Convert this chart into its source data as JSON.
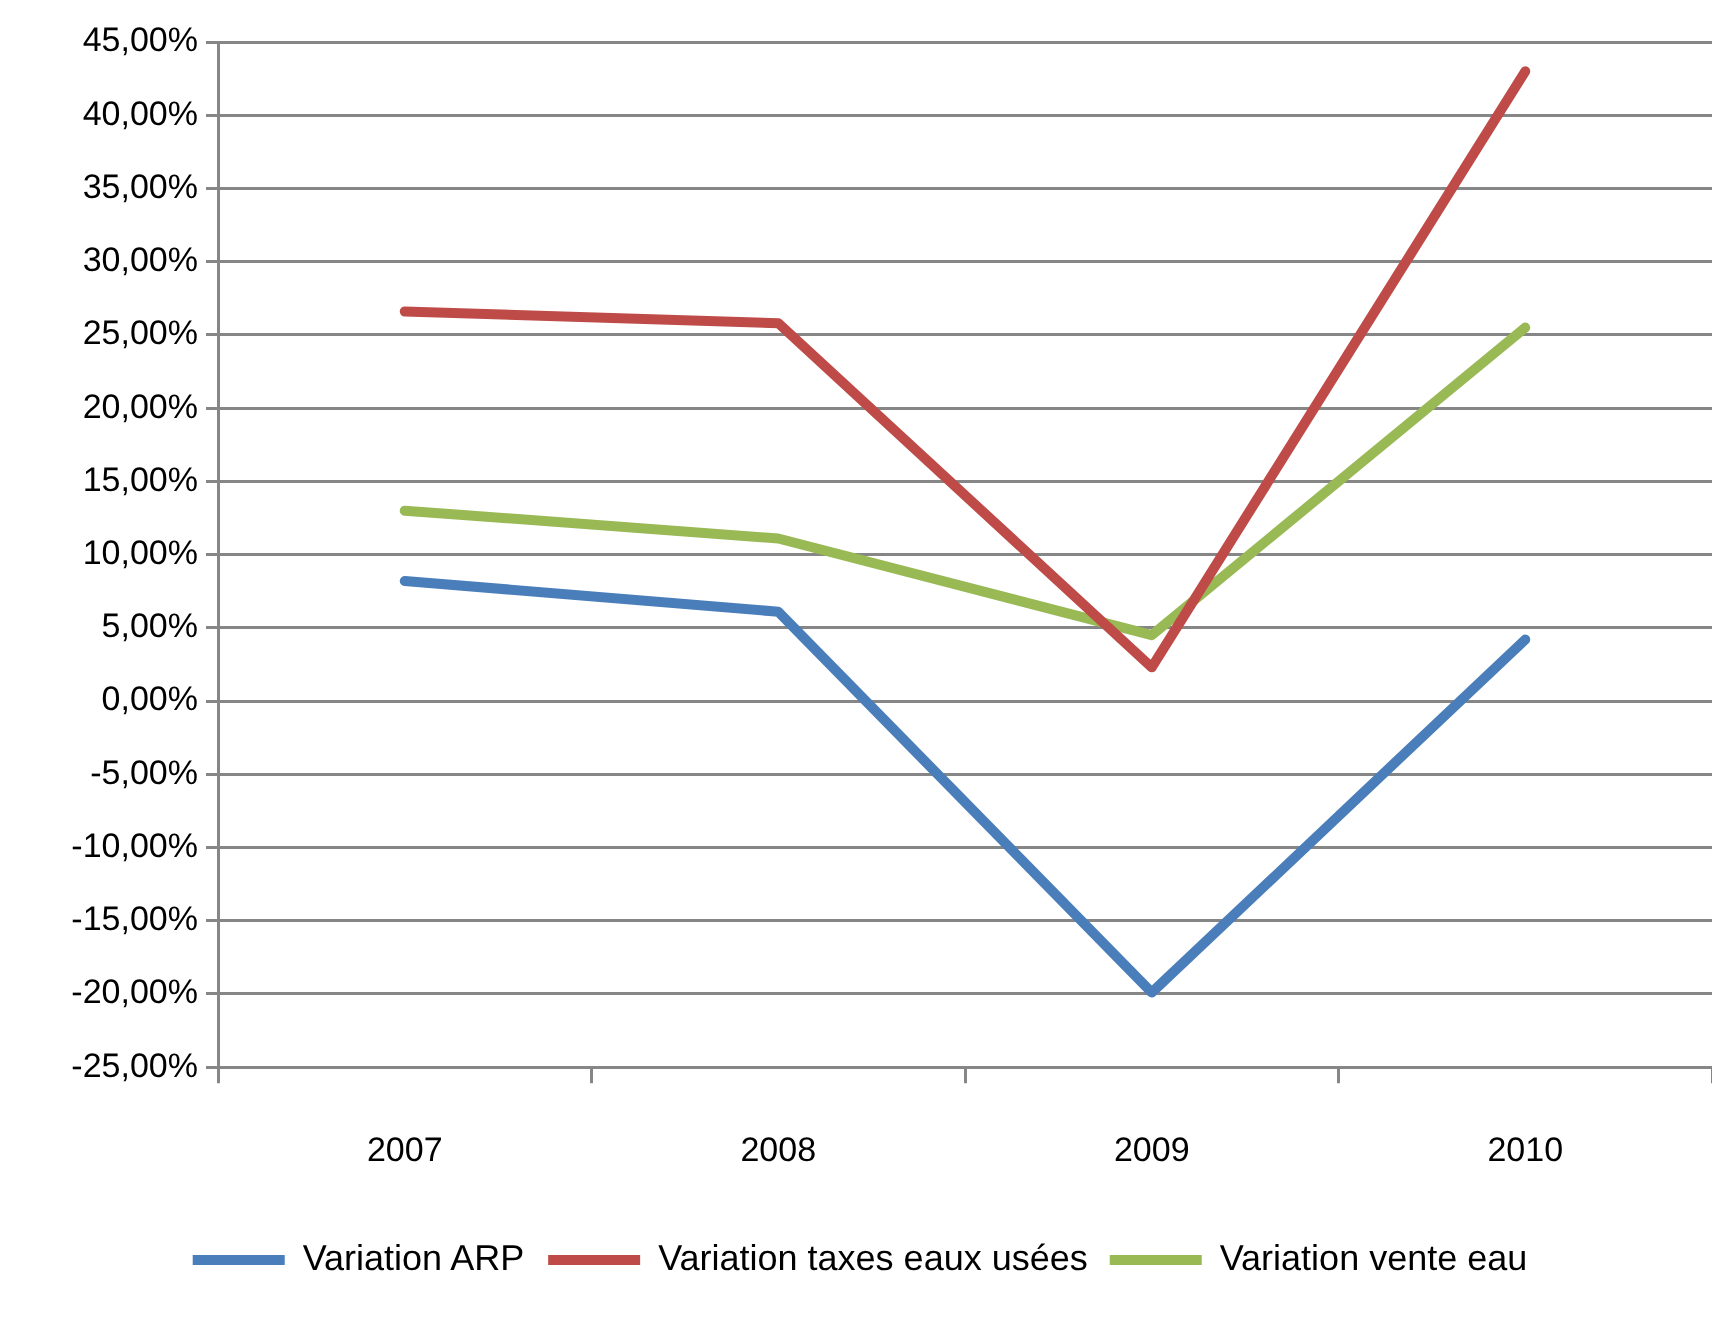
{
  "chart_data": {
    "type": "line",
    "categories": [
      "2007",
      "2008",
      "2009",
      "2010"
    ],
    "series": [
      {
        "name": "Variation ARP",
        "color": "#4a7ebb",
        "values": [
          8.2,
          6.1,
          -19.9,
          4.2
        ]
      },
      {
        "name": "Variation taxes eaux usées",
        "color": "#be4b48",
        "values": [
          26.6,
          25.8,
          2.3,
          43.0
        ]
      },
      {
        "name": "Variation vente eau",
        "color": "#98b954",
        "values": [
          13.0,
          11.1,
          4.5,
          25.5
        ]
      }
    ],
    "ylim": [
      -25,
      45
    ],
    "yticks": [
      {
        "value": -25,
        "label": "-25,00%"
      },
      {
        "value": -20,
        "label": "-20,00%"
      },
      {
        "value": -15,
        "label": "-15,00%"
      },
      {
        "value": -10,
        "label": "-10,00%"
      },
      {
        "value": -5,
        "label": "-5,00%"
      },
      {
        "value": 0,
        "label": "0,00%"
      },
      {
        "value": 5,
        "label": "5,00%"
      },
      {
        "value": 10,
        "label": "10,00%"
      },
      {
        "value": 15,
        "label": "15,00%"
      },
      {
        "value": 20,
        "label": "20,00%"
      },
      {
        "value": 25,
        "label": "25,00%"
      },
      {
        "value": 30,
        "label": "30,00%"
      },
      {
        "value": 35,
        "label": "35,00%"
      },
      {
        "value": 40,
        "label": "40,00%"
      },
      {
        "value": 45,
        "label": "45,00%"
      }
    ],
    "grid": "y",
    "legend": "bottom",
    "marker": "none",
    "line_style": "solid"
  }
}
